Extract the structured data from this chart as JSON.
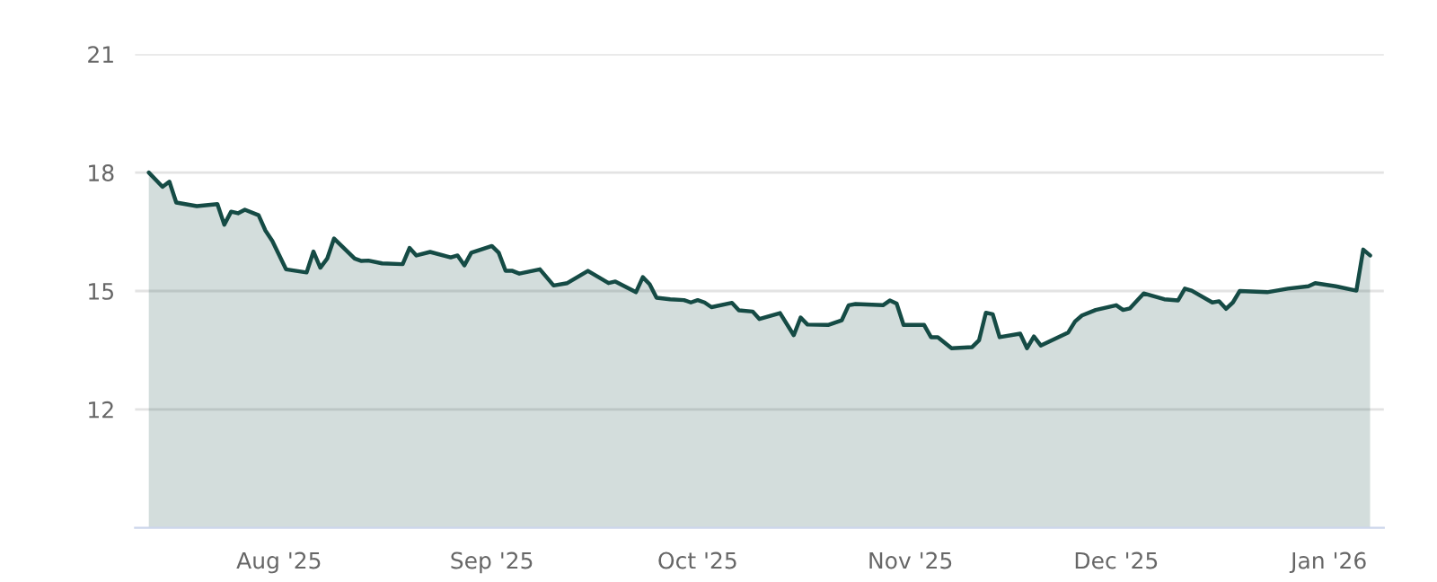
{
  "chart_data": {
    "type": "area",
    "color": "#154b45",
    "x": [
      "2025-07-13",
      "2025-07-15",
      "2025-07-16",
      "2025-07-17",
      "2025-07-20",
      "2025-07-23",
      "2025-07-24",
      "2025-07-25",
      "2025-07-26",
      "2025-07-27",
      "2025-07-29",
      "2025-07-30",
      "2025-07-31",
      "2025-08-02",
      "2025-08-05",
      "2025-08-06",
      "2025-08-07",
      "2025-08-08",
      "2025-08-09",
      "2025-08-12",
      "2025-08-13",
      "2025-08-14",
      "2025-08-16",
      "2025-08-19",
      "2025-08-20",
      "2025-08-21",
      "2025-08-23",
      "2025-08-26",
      "2025-08-27",
      "2025-08-28",
      "2025-08-29",
      "2025-09-01",
      "2025-09-02",
      "2025-09-03",
      "2025-09-04",
      "2025-09-05",
      "2025-09-08",
      "2025-09-10",
      "2025-09-12",
      "2025-09-15",
      "2025-09-18",
      "2025-09-19",
      "2025-09-22",
      "2025-09-23",
      "2025-09-24",
      "2025-09-25",
      "2025-09-27",
      "2025-09-29",
      "2025-09-30",
      "2025-10-01",
      "2025-10-02",
      "2025-10-03",
      "2025-10-06",
      "2025-10-07",
      "2025-10-09",
      "2025-10-10",
      "2025-10-13",
      "2025-10-15",
      "2025-10-16",
      "2025-10-17",
      "2025-10-20",
      "2025-10-22",
      "2025-10-23",
      "2025-10-24",
      "2025-10-28",
      "2025-10-29",
      "2025-10-30",
      "2025-10-31",
      "2025-11-03",
      "2025-11-04",
      "2025-11-05",
      "2025-11-07",
      "2025-11-10",
      "2025-11-11",
      "2025-11-12",
      "2025-11-13",
      "2025-11-14",
      "2025-11-17",
      "2025-11-18",
      "2025-11-19",
      "2025-11-20",
      "2025-11-24",
      "2025-11-25",
      "2025-11-26",
      "2025-11-28",
      "2025-12-01",
      "2025-12-02",
      "2025-12-03",
      "2025-12-05",
      "2025-12-08",
      "2025-12-10",
      "2025-12-11",
      "2025-12-12",
      "2025-12-15",
      "2025-12-16",
      "2025-12-17",
      "2025-12-18",
      "2025-12-19",
      "2025-12-23",
      "2025-12-26",
      "2025-12-29",
      "2025-12-30",
      "2026-01-02",
      "2026-01-05",
      "2026-01-06",
      "2026-01-07"
    ],
    "values": [
      18.0,
      17.64,
      17.77,
      17.24,
      17.15,
      17.2,
      16.68,
      17.01,
      16.97,
      17.06,
      16.92,
      16.53,
      16.27,
      15.55,
      15.47,
      16.0,
      15.59,
      15.82,
      16.33,
      15.82,
      15.76,
      15.77,
      15.7,
      15.68,
      16.09,
      15.9,
      15.99,
      15.85,
      15.9,
      15.65,
      15.97,
      16.14,
      15.97,
      15.51,
      15.51,
      15.44,
      15.55,
      15.14,
      15.2,
      15.51,
      15.2,
      15.24,
      14.97,
      15.35,
      15.17,
      14.83,
      14.79,
      14.77,
      14.71,
      14.77,
      14.71,
      14.59,
      14.7,
      14.51,
      14.48,
      14.29,
      14.44,
      13.88,
      14.33,
      14.15,
      14.14,
      14.26,
      14.64,
      14.67,
      14.64,
      14.76,
      14.68,
      14.14,
      14.14,
      13.83,
      13.83,
      13.55,
      13.58,
      13.75,
      14.45,
      14.41,
      13.83,
      13.92,
      13.55,
      13.85,
      13.62,
      13.95,
      14.23,
      14.38,
      14.52,
      14.64,
      14.52,
      14.56,
      14.94,
      14.79,
      14.76,
      15.06,
      15.01,
      14.71,
      14.74,
      14.55,
      14.71,
      15.0,
      14.97,
      15.06,
      15.12,
      15.2,
      15.12,
      15.01,
      16.05,
      15.9
    ],
    "xlim": [
      "2025-07-11",
      "2026-01-09"
    ],
    "xticks": [
      {
        "value": "2025-08-01",
        "label": "Aug '25"
      },
      {
        "value": "2025-09-01",
        "label": "Sep '25"
      },
      {
        "value": "2025-10-01",
        "label": "Oct '25"
      },
      {
        "value": "2025-11-01",
        "label": "Nov '25"
      },
      {
        "value": "2025-12-01",
        "label": "Dec '25"
      },
      {
        "value": "2026-01-01",
        "label": "Jan '26"
      }
    ],
    "ylim": [
      9,
      21
    ],
    "yticks": [
      12,
      15,
      18,
      21
    ],
    "grid": "y",
    "legend": false
  }
}
